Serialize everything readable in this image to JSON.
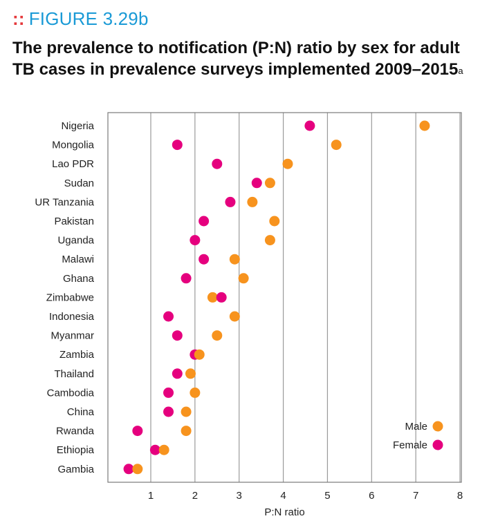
{
  "figure_label": "FIGURE 3.29b",
  "figure_label_marker": "::",
  "title": "The prevalence to notification (P:N) ratio by sex for adult TB cases in prevalence surveys implemented 2009–2015",
  "title_footnote": "a",
  "colors": {
    "male": "#f7931e",
    "female": "#e5007e",
    "grid": "#9a9a9a",
    "frame": "#7a7a7a"
  },
  "chart_data": {
    "type": "scatter",
    "xlabel": "P:N ratio",
    "xlim": [
      0,
      8
    ],
    "xticks": [
      1,
      2,
      3,
      4,
      5,
      6,
      7,
      8
    ],
    "grid": true,
    "legend_position": "bottom-right",
    "categories": [
      "Nigeria",
      "Mongolia",
      "Lao PDR",
      "Sudan",
      "UR Tanzania",
      "Pakistan",
      "Uganda",
      "Malawi",
      "Ghana",
      "Zimbabwe",
      "Indonesia",
      "Myanmar",
      "Zambia",
      "Thailand",
      "Cambodia",
      "China",
      "Rwanda",
      "Ethiopia",
      "Gambia"
    ],
    "series": [
      {
        "name": "Male",
        "values": [
          7.2,
          5.2,
          4.1,
          3.7,
          3.3,
          3.8,
          3.7,
          2.9,
          3.1,
          2.4,
          2.9,
          2.5,
          2.1,
          1.9,
          2.0,
          1.8,
          1.8,
          1.3,
          0.7
        ]
      },
      {
        "name": "Female",
        "values": [
          4.6,
          1.6,
          2.5,
          3.4,
          2.8,
          2.2,
          2.0,
          2.2,
          1.8,
          2.6,
          1.4,
          1.6,
          2.0,
          1.6,
          1.4,
          1.4,
          0.7,
          1.1,
          0.5
        ]
      }
    ]
  }
}
